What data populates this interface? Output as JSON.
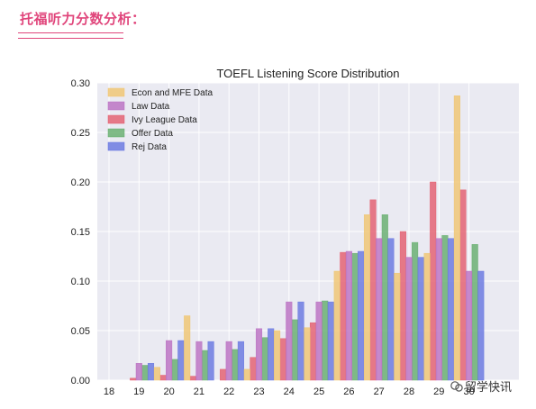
{
  "header": {
    "title": "托福听力分数分析："
  },
  "watermark": {
    "text": "留学快讯"
  },
  "chart_data": {
    "type": "bar",
    "title": "TOEFL Listening Score Distribution",
    "xlabel": "",
    "ylabel": "",
    "categories": [
      "18",
      "19",
      "20",
      "21",
      "22",
      "23",
      "24",
      "25",
      "26",
      "27",
      "28",
      "29",
      "30"
    ],
    "y_ticks": [
      "0.00",
      "0.05",
      "0.10",
      "0.15",
      "0.20",
      "0.25",
      "0.30"
    ],
    "ylim": [
      0,
      0.3
    ],
    "grid": true,
    "legend_position": "top-left",
    "series": [
      {
        "name": "Econ and MFE Data",
        "color": "#f0c46e",
        "values": [
          0,
          0,
          0.013,
          0.065,
          0,
          0.011,
          0.05,
          0.053,
          0.11,
          0.167,
          0.108,
          0.128,
          0.287
        ]
      },
      {
        "name": "Law Data",
        "color": "#b96dc1",
        "values": [
          0,
          0.017,
          0.04,
          0.039,
          0.039,
          0.052,
          0.079,
          0.079,
          0.13,
          0.143,
          0.124,
          0.143,
          0.11
        ]
      },
      {
        "name": "Ivy League Data",
        "color": "#e35b6b",
        "values": [
          0,
          0.002,
          0.005,
          0.004,
          0.011,
          0.023,
          0.042,
          0.058,
          0.129,
          0.182,
          0.15,
          0.2,
          0.192
        ]
      },
      {
        "name": "Offer Data",
        "color": "#63ad6a",
        "values": [
          0,
          0.015,
          0.021,
          0.03,
          0.031,
          0.043,
          0.061,
          0.08,
          0.128,
          0.167,
          0.139,
          0.146,
          0.137
        ]
      },
      {
        "name": "Rej Data",
        "color": "#6574e0",
        "values": [
          0,
          0.017,
          0.04,
          0.039,
          0.039,
          0.052,
          0.079,
          0.079,
          0.13,
          0.143,
          0.124,
          0.143,
          0.11
        ]
      }
    ]
  }
}
